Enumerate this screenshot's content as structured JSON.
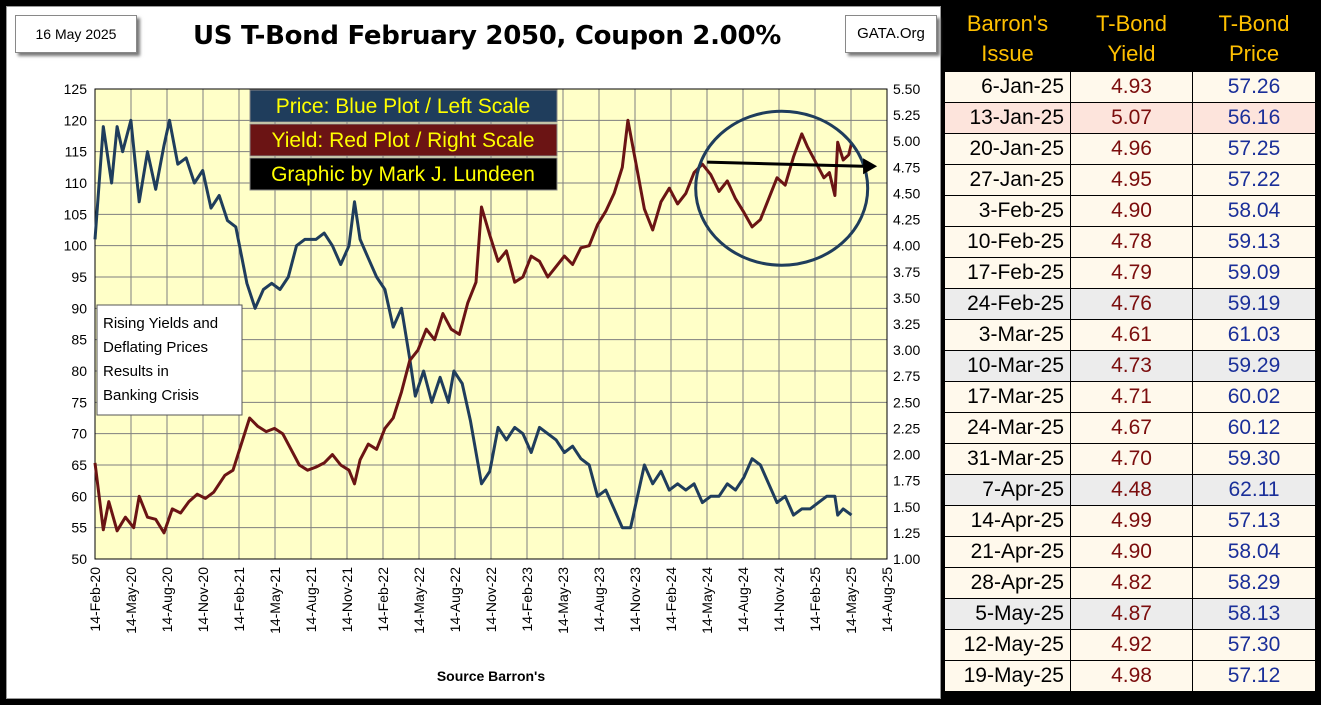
{
  "header": {
    "date": "16 May 2025",
    "title": "US T-Bond February 2050, Coupon 2.00%",
    "source_box": "GATA.Org"
  },
  "legend": {
    "price": "Price:  Blue Plot / Left Scale",
    "yield": "Yield:  Red Plot / Right Scale",
    "credit": "Graphic by Mark J. Lundeen"
  },
  "annotation": [
    "Rising Yields and",
    "Deflating Prices",
    "Results in",
    "Banking Crisis"
  ],
  "xlabel": "Source Barron's",
  "colors": {
    "plot_bg": "#ffffc8",
    "grid": "#7f7f7f",
    "price_line": "#1f3d5c",
    "yield_line": "#6b1414",
    "legend_price_bg": "#1f3d5c",
    "legend_price_text": "#ffff00",
    "legend_yield_bg": "#6b1414",
    "legend_yield_text": "#ffff00",
    "legend_credit_bg": "#000000",
    "legend_credit_text": "#ffff00",
    "table_header_bg": "#000000",
    "table_header_text": "#ffc000"
  },
  "chart_data": {
    "type": "line",
    "x_range": [
      "2020-02-14",
      "2025-08-14"
    ],
    "x_tick_labels": [
      "14-Feb-20",
      "14-May-20",
      "14-Aug-20",
      "14-Nov-20",
      "14-Feb-21",
      "14-May-21",
      "14-Aug-21",
      "14-Nov-21",
      "14-Feb-22",
      "14-May-22",
      "14-Aug-22",
      "14-Nov-22",
      "14-Feb-23",
      "14-May-23",
      "14-Aug-23",
      "14-Nov-23",
      "14-Feb-24",
      "14-May-24",
      "14-Aug-24",
      "14-Nov-24",
      "14-Feb-25",
      "14-May-25",
      "14-Aug-25"
    ],
    "left_axis": {
      "label": "Price",
      "range": [
        50,
        125
      ],
      "ticks": [
        50,
        55,
        60,
        65,
        70,
        75,
        80,
        85,
        90,
        95,
        100,
        105,
        110,
        115,
        120,
        125
      ]
    },
    "right_axis": {
      "label": "Yield",
      "range": [
        1.0,
        5.5
      ],
      "ticks": [
        "1.00",
        "1.25",
        "1.50",
        "1.75",
        "2.00",
        "2.25",
        "2.50",
        "2.75",
        "3.00",
        "3.25",
        "3.50",
        "3.75",
        "4.00",
        "4.25",
        "4.50",
        "4.75",
        "5.00",
        "5.25",
        "5.50"
      ]
    },
    "grid": true,
    "series": [
      {
        "name": "Price",
        "axis": "left",
        "points": [
          [
            "2020-02-14",
            101
          ],
          [
            "2020-03-06",
            119
          ],
          [
            "2020-03-27",
            110
          ],
          [
            "2020-04-10",
            119
          ],
          [
            "2020-04-24",
            115
          ],
          [
            "2020-05-15",
            120
          ],
          [
            "2020-06-05",
            107
          ],
          [
            "2020-06-26",
            115
          ],
          [
            "2020-07-17",
            109
          ],
          [
            "2020-08-07",
            116
          ],
          [
            "2020-08-21",
            120
          ],
          [
            "2020-09-11",
            113
          ],
          [
            "2020-10-02",
            114
          ],
          [
            "2020-10-23",
            110
          ],
          [
            "2020-11-13",
            112
          ],
          [
            "2020-12-04",
            106
          ],
          [
            "2020-12-25",
            108
          ],
          [
            "2021-01-15",
            104
          ],
          [
            "2021-02-05",
            103
          ],
          [
            "2021-03-05",
            94
          ],
          [
            "2021-03-26",
            90
          ],
          [
            "2021-04-16",
            93
          ],
          [
            "2021-05-07",
            94
          ],
          [
            "2021-05-28",
            93
          ],
          [
            "2021-06-18",
            95
          ],
          [
            "2021-07-09",
            100
          ],
          [
            "2021-07-30",
            101
          ],
          [
            "2021-08-27",
            101
          ],
          [
            "2021-09-17",
            102
          ],
          [
            "2021-10-08",
            100
          ],
          [
            "2021-10-29",
            97
          ],
          [
            "2021-11-19",
            100
          ],
          [
            "2021-12-03",
            107
          ],
          [
            "2021-12-17",
            101
          ],
          [
            "2022-01-07",
            98
          ],
          [
            "2022-01-28",
            95
          ],
          [
            "2022-02-18",
            93
          ],
          [
            "2022-03-11",
            87
          ],
          [
            "2022-04-01",
            90
          ],
          [
            "2022-04-22",
            82
          ],
          [
            "2022-05-06",
            76
          ],
          [
            "2022-05-27",
            80
          ],
          [
            "2022-06-17",
            75
          ],
          [
            "2022-07-08",
            79
          ],
          [
            "2022-07-29",
            75
          ],
          [
            "2022-08-12",
            80
          ],
          [
            "2022-09-02",
            78
          ],
          [
            "2022-09-23",
            72
          ],
          [
            "2022-10-21",
            62
          ],
          [
            "2022-11-11",
            64
          ],
          [
            "2022-12-02",
            71
          ],
          [
            "2022-12-23",
            69
          ],
          [
            "2023-01-13",
            71
          ],
          [
            "2023-02-03",
            70
          ],
          [
            "2023-02-24",
            67
          ],
          [
            "2023-03-17",
            71
          ],
          [
            "2023-04-07",
            70
          ],
          [
            "2023-04-28",
            69
          ],
          [
            "2023-05-19",
            67
          ],
          [
            "2023-06-09",
            68
          ],
          [
            "2023-06-30",
            66
          ],
          [
            "2023-07-21",
            65
          ],
          [
            "2023-08-11",
            60
          ],
          [
            "2023-09-01",
            61
          ],
          [
            "2023-09-22",
            58
          ],
          [
            "2023-10-13",
            55
          ],
          [
            "2023-11-03",
            55
          ],
          [
            "2023-11-17",
            59
          ],
          [
            "2023-12-08",
            65
          ],
          [
            "2023-12-29",
            62
          ],
          [
            "2024-01-19",
            64
          ],
          [
            "2024-02-09",
            61
          ],
          [
            "2024-03-01",
            62
          ],
          [
            "2024-03-22",
            61
          ],
          [
            "2024-04-12",
            62
          ],
          [
            "2024-05-03",
            59
          ],
          [
            "2024-05-24",
            60
          ],
          [
            "2024-06-14",
            60
          ],
          [
            "2024-07-05",
            62
          ],
          [
            "2024-07-26",
            61
          ],
          [
            "2024-08-16",
            63
          ],
          [
            "2024-09-06",
            66
          ],
          [
            "2024-09-27",
            65
          ],
          [
            "2024-10-18",
            62
          ],
          [
            "2024-11-08",
            59
          ],
          [
            "2024-11-29",
            60
          ],
          [
            "2024-12-20",
            57
          ],
          [
            "2025-01-10",
            58
          ],
          [
            "2025-01-31",
            58
          ],
          [
            "2025-02-21",
            59
          ],
          [
            "2025-03-14",
            60
          ],
          [
            "2025-04-04",
            60
          ],
          [
            "2025-04-11",
            57
          ],
          [
            "2025-04-25",
            58
          ],
          [
            "2025-05-16",
            57
          ]
        ]
      },
      {
        "name": "Yield",
        "axis": "right",
        "points": [
          [
            "2020-02-14",
            1.92
          ],
          [
            "2020-03-06",
            1.28
          ],
          [
            "2020-03-20",
            1.55
          ],
          [
            "2020-04-10",
            1.27
          ],
          [
            "2020-05-01",
            1.4
          ],
          [
            "2020-05-22",
            1.3
          ],
          [
            "2020-06-05",
            1.6
          ],
          [
            "2020-06-26",
            1.4
          ],
          [
            "2020-07-17",
            1.38
          ],
          [
            "2020-08-07",
            1.25
          ],
          [
            "2020-08-28",
            1.48
          ],
          [
            "2020-09-18",
            1.44
          ],
          [
            "2020-10-09",
            1.55
          ],
          [
            "2020-10-30",
            1.62
          ],
          [
            "2020-11-20",
            1.58
          ],
          [
            "2020-12-11",
            1.64
          ],
          [
            "2021-01-08",
            1.8
          ],
          [
            "2021-01-29",
            1.85
          ],
          [
            "2021-02-19",
            2.1
          ],
          [
            "2021-03-12",
            2.35
          ],
          [
            "2021-04-02",
            2.27
          ],
          [
            "2021-04-23",
            2.22
          ],
          [
            "2021-05-14",
            2.25
          ],
          [
            "2021-06-04",
            2.2
          ],
          [
            "2021-06-25",
            2.05
          ],
          [
            "2021-07-16",
            1.9
          ],
          [
            "2021-08-06",
            1.85
          ],
          [
            "2021-08-27",
            1.88
          ],
          [
            "2021-09-17",
            1.92
          ],
          [
            "2021-10-08",
            2.0
          ],
          [
            "2021-10-29",
            1.9
          ],
          [
            "2021-11-19",
            1.85
          ],
          [
            "2021-12-03",
            1.72
          ],
          [
            "2021-12-17",
            1.95
          ],
          [
            "2022-01-07",
            2.1
          ],
          [
            "2022-01-28",
            2.05
          ],
          [
            "2022-02-18",
            2.25
          ],
          [
            "2022-03-11",
            2.35
          ],
          [
            "2022-04-01",
            2.6
          ],
          [
            "2022-04-22",
            2.9
          ],
          [
            "2022-05-13",
            3.0
          ],
          [
            "2022-06-03",
            3.2
          ],
          [
            "2022-06-24",
            3.1
          ],
          [
            "2022-07-15",
            3.35
          ],
          [
            "2022-08-05",
            3.2
          ],
          [
            "2022-08-26",
            3.15
          ],
          [
            "2022-09-16",
            3.45
          ],
          [
            "2022-10-07",
            3.65
          ],
          [
            "2022-10-21",
            4.37
          ],
          [
            "2022-11-11",
            4.1
          ],
          [
            "2022-12-02",
            3.85
          ],
          [
            "2022-12-23",
            3.95
          ],
          [
            "2023-01-13",
            3.65
          ],
          [
            "2023-02-03",
            3.7
          ],
          [
            "2023-02-24",
            3.9
          ],
          [
            "2023-03-17",
            3.85
          ],
          [
            "2023-04-07",
            3.7
          ],
          [
            "2023-04-28",
            3.8
          ],
          [
            "2023-05-19",
            3.9
          ],
          [
            "2023-06-09",
            3.82
          ],
          [
            "2023-06-30",
            3.98
          ],
          [
            "2023-07-21",
            4.0
          ],
          [
            "2023-08-11",
            4.2
          ],
          [
            "2023-09-01",
            4.33
          ],
          [
            "2023-09-22",
            4.5
          ],
          [
            "2023-10-13",
            4.75
          ],
          [
            "2023-10-27",
            5.2
          ],
          [
            "2023-11-17",
            4.78
          ],
          [
            "2023-12-08",
            4.35
          ],
          [
            "2023-12-29",
            4.15
          ],
          [
            "2024-01-19",
            4.42
          ],
          [
            "2024-02-09",
            4.55
          ],
          [
            "2024-03-01",
            4.4
          ],
          [
            "2024-03-22",
            4.5
          ],
          [
            "2024-04-12",
            4.7
          ],
          [
            "2024-05-03",
            4.78
          ],
          [
            "2024-05-24",
            4.68
          ],
          [
            "2024-06-14",
            4.52
          ],
          [
            "2024-07-05",
            4.62
          ],
          [
            "2024-07-26",
            4.45
          ],
          [
            "2024-08-16",
            4.32
          ],
          [
            "2024-09-06",
            4.18
          ],
          [
            "2024-09-27",
            4.25
          ],
          [
            "2024-10-18",
            4.45
          ],
          [
            "2024-11-08",
            4.65
          ],
          [
            "2024-11-29",
            4.58
          ],
          [
            "2024-12-20",
            4.85
          ],
          [
            "2025-01-10",
            5.07
          ],
          [
            "2025-01-24",
            4.95
          ],
          [
            "2025-02-14",
            4.8
          ],
          [
            "2025-03-07",
            4.65
          ],
          [
            "2025-03-21",
            4.7
          ],
          [
            "2025-04-04",
            4.48
          ],
          [
            "2025-04-11",
            4.99
          ],
          [
            "2025-04-25",
            4.82
          ],
          [
            "2025-05-09",
            4.87
          ],
          [
            "2025-05-16",
            4.98
          ]
        ]
      }
    ],
    "annotations": [
      "circle around Aug-24 to May-25 yields",
      "horizontal arrow across circled yields"
    ]
  },
  "table": {
    "headers": [
      [
        "Barron's",
        "Issue"
      ],
      [
        "T-Bond",
        "Yield"
      ],
      [
        "T-Bond",
        "Price"
      ]
    ],
    "rows": [
      {
        "issue": "6-Jan-25",
        "yield": "4.93",
        "price": "57.26",
        "shade": "normal"
      },
      {
        "issue": "13-Jan-25",
        "yield": "5.07",
        "price": "56.16",
        "shade": "high"
      },
      {
        "issue": "20-Jan-25",
        "yield": "4.96",
        "price": "57.25",
        "shade": "normal"
      },
      {
        "issue": "27-Jan-25",
        "yield": "4.95",
        "price": "57.22",
        "shade": "normal"
      },
      {
        "issue": "3-Feb-25",
        "yield": "4.90",
        "price": "58.04",
        "shade": "normal"
      },
      {
        "issue": "10-Feb-25",
        "yield": "4.78",
        "price": "59.13",
        "shade": "normal"
      },
      {
        "issue": "17-Feb-25",
        "yield": "4.79",
        "price": "59.09",
        "shade": "normal"
      },
      {
        "issue": "24-Feb-25",
        "yield": "4.76",
        "price": "59.19",
        "shade": "grey"
      },
      {
        "issue": "3-Mar-25",
        "yield": "4.61",
        "price": "61.03",
        "shade": "normal"
      },
      {
        "issue": "10-Mar-25",
        "yield": "4.73",
        "price": "59.29",
        "shade": "grey"
      },
      {
        "issue": "17-Mar-25",
        "yield": "4.71",
        "price": "60.02",
        "shade": "normal"
      },
      {
        "issue": "24-Mar-25",
        "yield": "4.67",
        "price": "60.12",
        "shade": "normal"
      },
      {
        "issue": "31-Mar-25",
        "yield": "4.70",
        "price": "59.30",
        "shade": "normal"
      },
      {
        "issue": "7-Apr-25",
        "yield": "4.48",
        "price": "62.11",
        "shade": "grey"
      },
      {
        "issue": "14-Apr-25",
        "yield": "4.99",
        "price": "57.13",
        "shade": "normal"
      },
      {
        "issue": "21-Apr-25",
        "yield": "4.90",
        "price": "58.04",
        "shade": "normal"
      },
      {
        "issue": "28-Apr-25",
        "yield": "4.82",
        "price": "58.29",
        "shade": "normal"
      },
      {
        "issue": "5-May-25",
        "yield": "4.87",
        "price": "58.13",
        "shade": "grey"
      },
      {
        "issue": "12-May-25",
        "yield": "4.92",
        "price": "57.30",
        "shade": "normal"
      },
      {
        "issue": "19-May-25",
        "yield": "4.98",
        "price": "57.12",
        "shade": "normal"
      }
    ]
  }
}
